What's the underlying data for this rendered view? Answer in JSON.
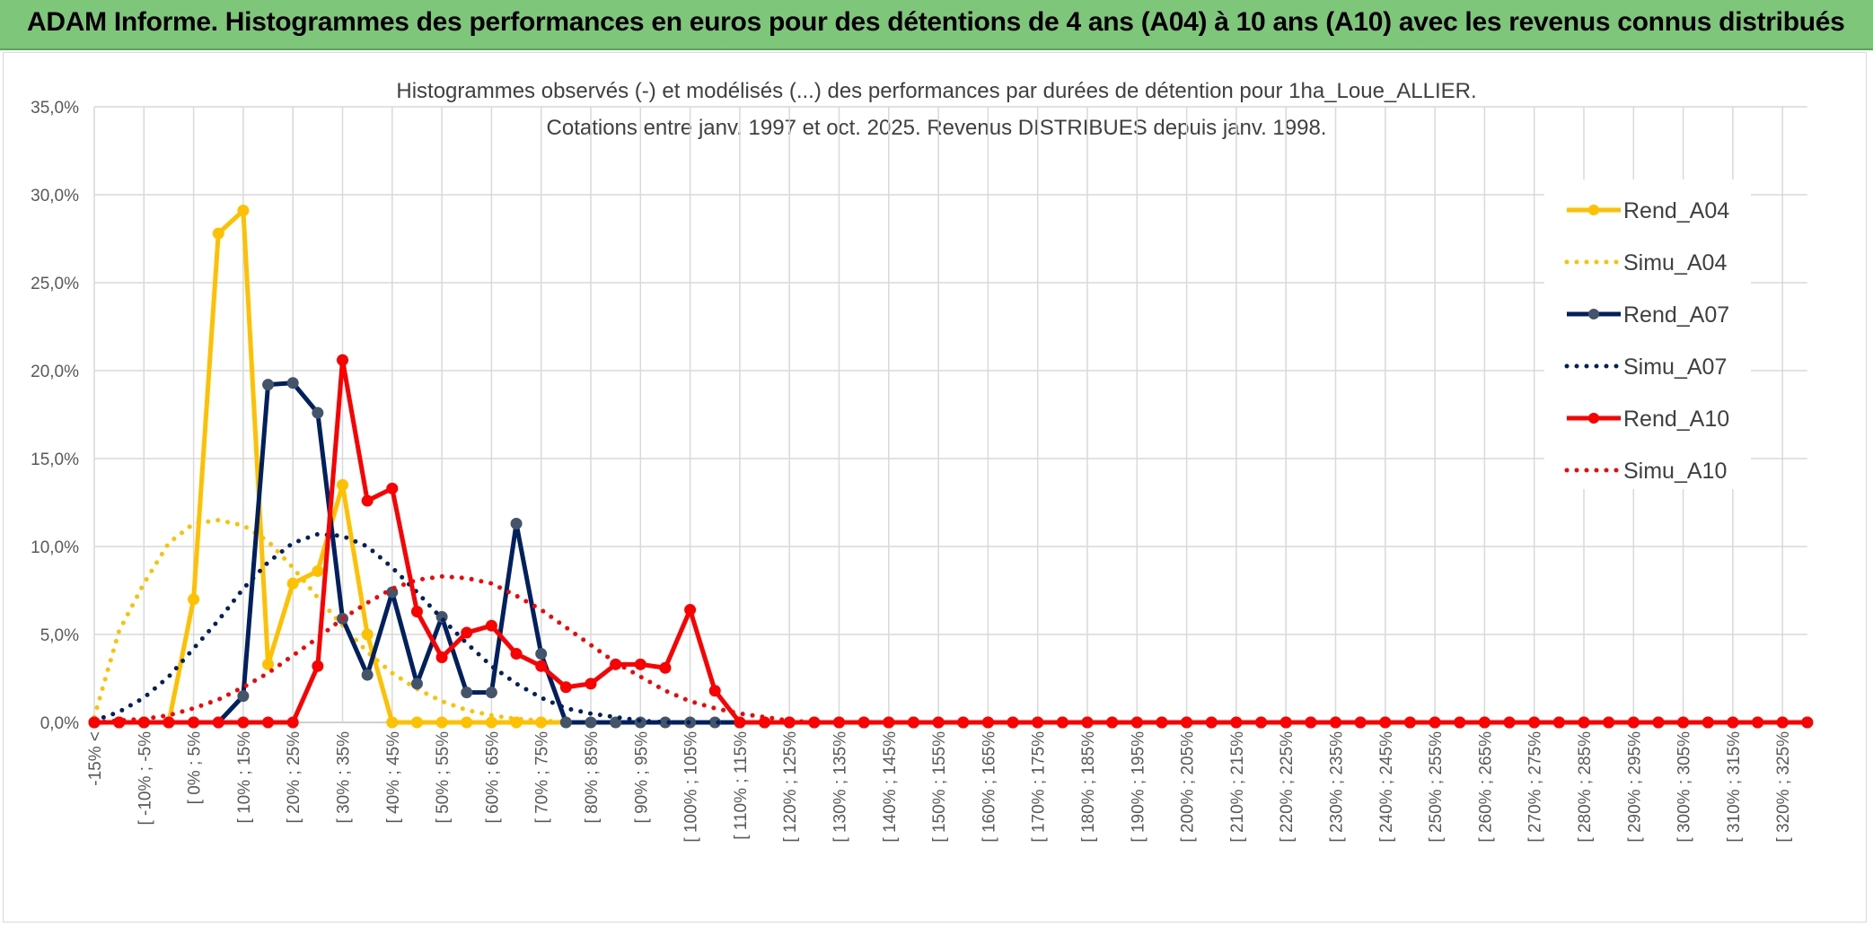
{
  "header": {
    "title": "ADAM Informe. Histogrammes des performances en euros pour des détentions de 4 ans (A04) à 10 ans (A10) avec les revenus connus distribués"
  },
  "chart_data": {
    "type": "line",
    "title": "Histogrammes observés (-) et modélisés (...) des performances par durées de détention pour 1ha_Loue_ALLIER.",
    "subtitle": "Cotations entre janv. 1997 et oct. 2025. Revenus DISTRIBUES depuis janv. 1998.",
    "xlabel": "",
    "ylabel": "",
    "ylim": [
      0,
      35
    ],
    "y_ticks": [
      "0,0%",
      "5,0%",
      "10,0%",
      "15,0%",
      "20,0%",
      "25,0%",
      "30,0%",
      "35,0%"
    ],
    "grid": true,
    "legend_position": "right",
    "x_labels": [
      "-15% <",
      "[ -10% ; -5%",
      "[ 0% ; 5%",
      "[ 10% ; 15%",
      "[ 20% ; 25%",
      "[ 30% ; 35%",
      "[ 40% ; 45%",
      "[ 50% ; 55%",
      "[ 60% ; 65%",
      "[ 70% ; 75%",
      "[ 80% ; 85%",
      "[ 90% ; 95%",
      "[ 100% ; 105%",
      "[ 110% ; 115%",
      "[ 120% ; 125%",
      "[ 130% ; 135%",
      "[ 140% ; 145%",
      "[ 150% ; 155%",
      "[ 160% ; 165%",
      "[ 170% ; 175%",
      "[ 180% ; 185%",
      "[ 190% ; 195%",
      "[ 200% ; 205%",
      "[ 210% ; 215%",
      "[ 220% ; 225%",
      "[ 230% ; 235%",
      "[ 240% ; 245%",
      "[ 250% ; 255%",
      "[ 260% ; 265%",
      "[ 270% ; 275%",
      "[ 280% ; 285%",
      "[ 290% ; 295%",
      "[ 300% ; 305%",
      "[ 310% ; 315%",
      "[ 320% ; 325%"
    ],
    "series": [
      {
        "name": "Rend_A04",
        "style": "solid",
        "color": "#ffc000",
        "values": [
          0,
          0,
          0,
          0,
          7,
          27.8,
          29.1,
          3.3,
          7.9,
          8.6,
          13.5,
          5,
          0,
          0,
          0,
          0,
          0,
          0,
          0,
          0,
          0
        ]
      },
      {
        "name": "Simu_A04",
        "style": "dotted",
        "color": "#ffc000",
        "values": [
          0.3,
          5.2,
          7.9,
          10.2,
          11.3,
          11.5,
          11.2,
          10.3,
          8.8,
          7.1,
          5.5,
          4,
          2.8,
          1.9,
          1.2,
          0.7,
          0.4,
          0.2,
          0.1,
          0
        ]
      },
      {
        "name": "Rend_A07",
        "style": "solid",
        "color": "#002060",
        "values": [
          0,
          0,
          0,
          0,
          0,
          0,
          1.5,
          19.2,
          19.3,
          17.6,
          5.9,
          2.7,
          7.4,
          2.2,
          6,
          1.7,
          1.7,
          11.3,
          3.9,
          0,
          0,
          0,
          0,
          0,
          0,
          0,
          0,
          0
        ]
      },
      {
        "name": "Simu_A07",
        "style": "dotted",
        "color": "#002060",
        "values": [
          0.1,
          0.6,
          1.4,
          2.6,
          4.2,
          5.8,
          7.6,
          9.1,
          10.2,
          10.7,
          10.6,
          10,
          8.8,
          7.4,
          5.9,
          4.5,
          3.2,
          2.2,
          1.4,
          0.8,
          0.5,
          0.3,
          0.1,
          0
        ]
      },
      {
        "name": "Rend_A10",
        "style": "solid",
        "color": "#ff0000",
        "values": [
          0,
          0,
          0,
          0,
          0,
          0,
          0,
          0,
          0,
          3.2,
          20.6,
          12.6,
          13.3,
          6.3,
          3.7,
          5.1,
          5.5,
          3.9,
          3.2,
          2,
          2.2,
          3.3,
          3.3,
          3.1,
          6.4,
          1.8,
          0,
          0,
          0,
          0,
          0,
          0,
          0,
          0,
          0,
          0,
          0,
          0,
          0,
          0,
          0,
          0,
          0,
          0,
          0,
          0,
          0,
          0,
          0,
          0,
          0,
          0,
          0,
          0,
          0,
          0,
          0,
          0,
          0,
          0,
          0,
          0,
          0,
          0,
          0,
          0,
          0,
          0,
          0,
          0
        ]
      },
      {
        "name": "Simu_A10",
        "style": "dotted",
        "color": "#ff0000",
        "values": [
          0,
          0.1,
          0.2,
          0.4,
          0.8,
          1.3,
          2,
          2.8,
          3.8,
          4.8,
          5.9,
          6.8,
          7.6,
          8.1,
          8.3,
          8.2,
          7.9,
          7.2,
          6.4,
          5.4,
          4.4,
          3.4,
          2.6,
          1.8,
          1.2,
          0.8,
          0.5,
          0.3,
          0.1,
          0
        ]
      }
    ]
  }
}
